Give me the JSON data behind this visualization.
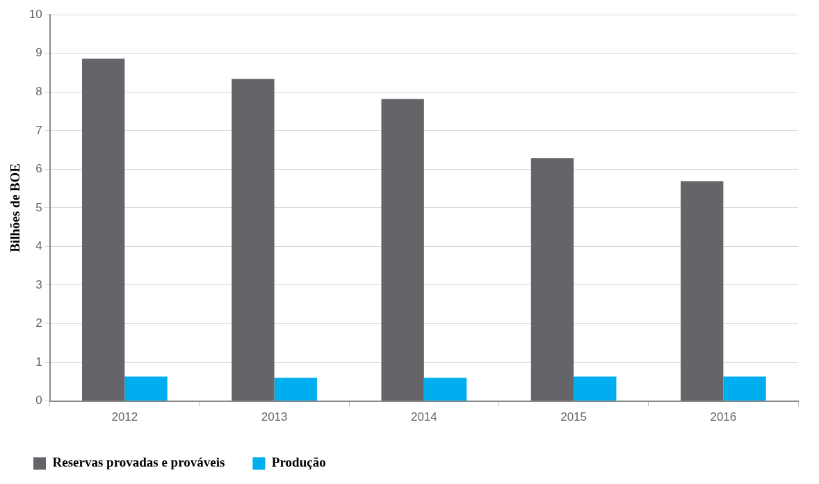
{
  "chart_data": {
    "type": "bar",
    "ylabel": "Bilhões de BOE",
    "categories": [
      "2012",
      "2013",
      "2014",
      "2015",
      "2016"
    ],
    "series": [
      {
        "name": "Reservas provadas e prováveis",
        "color": "#656469",
        "values": [
          8.86,
          8.34,
          7.82,
          6.29,
          5.69
        ]
      },
      {
        "name": "Produção",
        "color": "#00aeef",
        "values": [
          0.63,
          0.6,
          0.6,
          0.63,
          0.63
        ]
      }
    ],
    "ylim": [
      0,
      10
    ],
    "yticks": [
      0,
      1,
      2,
      3,
      4,
      5,
      6,
      7,
      8,
      9,
      10
    ],
    "grid": "y",
    "legend": "bottom left"
  }
}
